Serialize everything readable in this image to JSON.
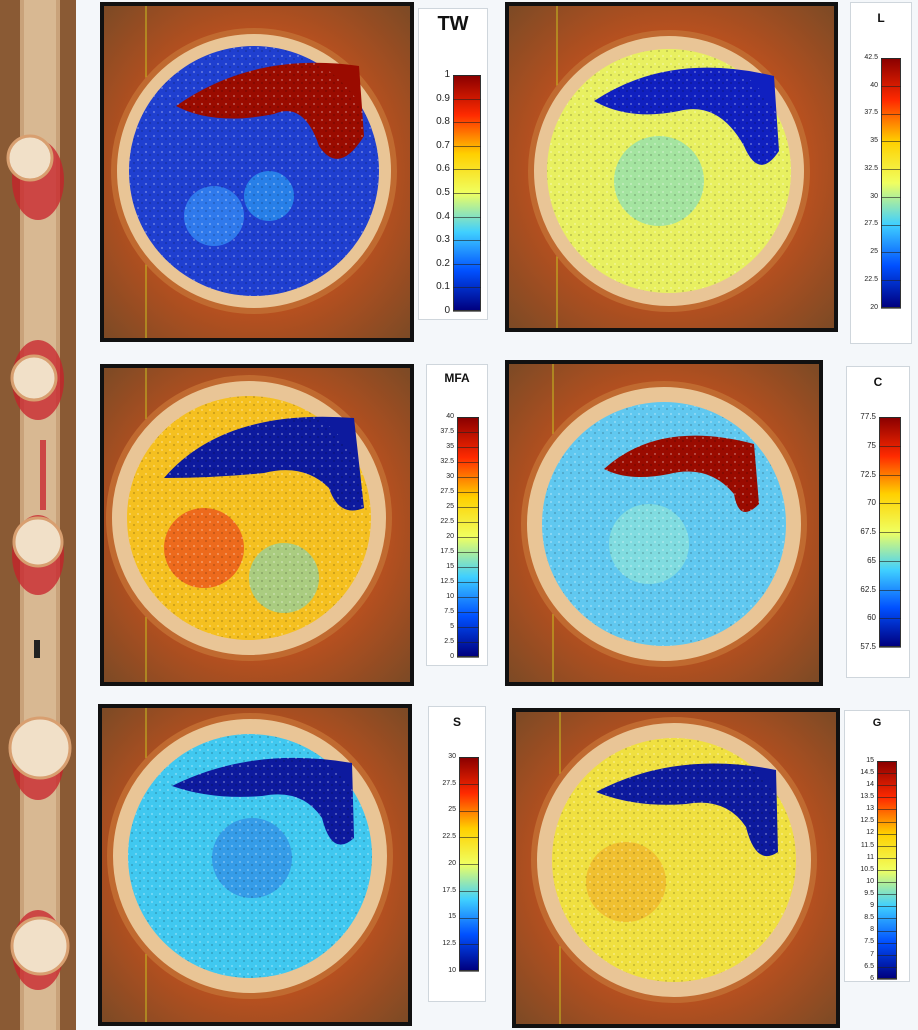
{
  "panels": [
    {
      "id": "tw-map",
      "legend": {
        "title": "TW",
        "ticks": [
          "1",
          "0.9",
          "0.8",
          "0.7",
          "0.6",
          "0.5",
          "0.4",
          "0.3",
          "0.2",
          "0.1",
          "0"
        ]
      }
    },
    {
      "id": "l-map",
      "legend": {
        "title": "L",
        "ticks": [
          "42.5",
          "40",
          "37.5",
          "35",
          "32.5",
          "30",
          "27.5",
          "25",
          "22.5",
          "20"
        ]
      }
    },
    {
      "id": "mfa-map",
      "legend": {
        "title": "MFA",
        "ticks": [
          "40",
          "37.5",
          "35",
          "32.5",
          "30",
          "27.5",
          "25",
          "22.5",
          "20",
          "17.5",
          "15",
          "12.5",
          "10",
          "7.5",
          "5",
          "2.5",
          "0"
        ]
      }
    },
    {
      "id": "c-map",
      "legend": {
        "title": "C",
        "ticks": [
          "77.5",
          "75",
          "72.5",
          "70",
          "67.5",
          "65",
          "62.5",
          "60",
          "57.5"
        ]
      }
    },
    {
      "id": "s-map",
      "legend": {
        "title": "S",
        "ticks": [
          "30",
          "27.5",
          "25",
          "22.5",
          "20",
          "17.5",
          "15",
          "12.5",
          "10"
        ]
      }
    },
    {
      "id": "g-map",
      "legend": {
        "title": "G",
        "ticks": [
          "15",
          "14.5",
          "14",
          "13.5",
          "13",
          "12.5",
          "12",
          "11.5",
          "11",
          "10.5",
          "10",
          "9.5",
          "9",
          "8.5",
          "8",
          "7.5",
          "7",
          "6.5",
          "6"
        ]
      }
    }
  ],
  "colors": {
    "jet_high": "#8b0000",
    "jet_mid": "#ffff40",
    "jet_low": "#00007f",
    "wood": "#9a5a2a"
  }
}
